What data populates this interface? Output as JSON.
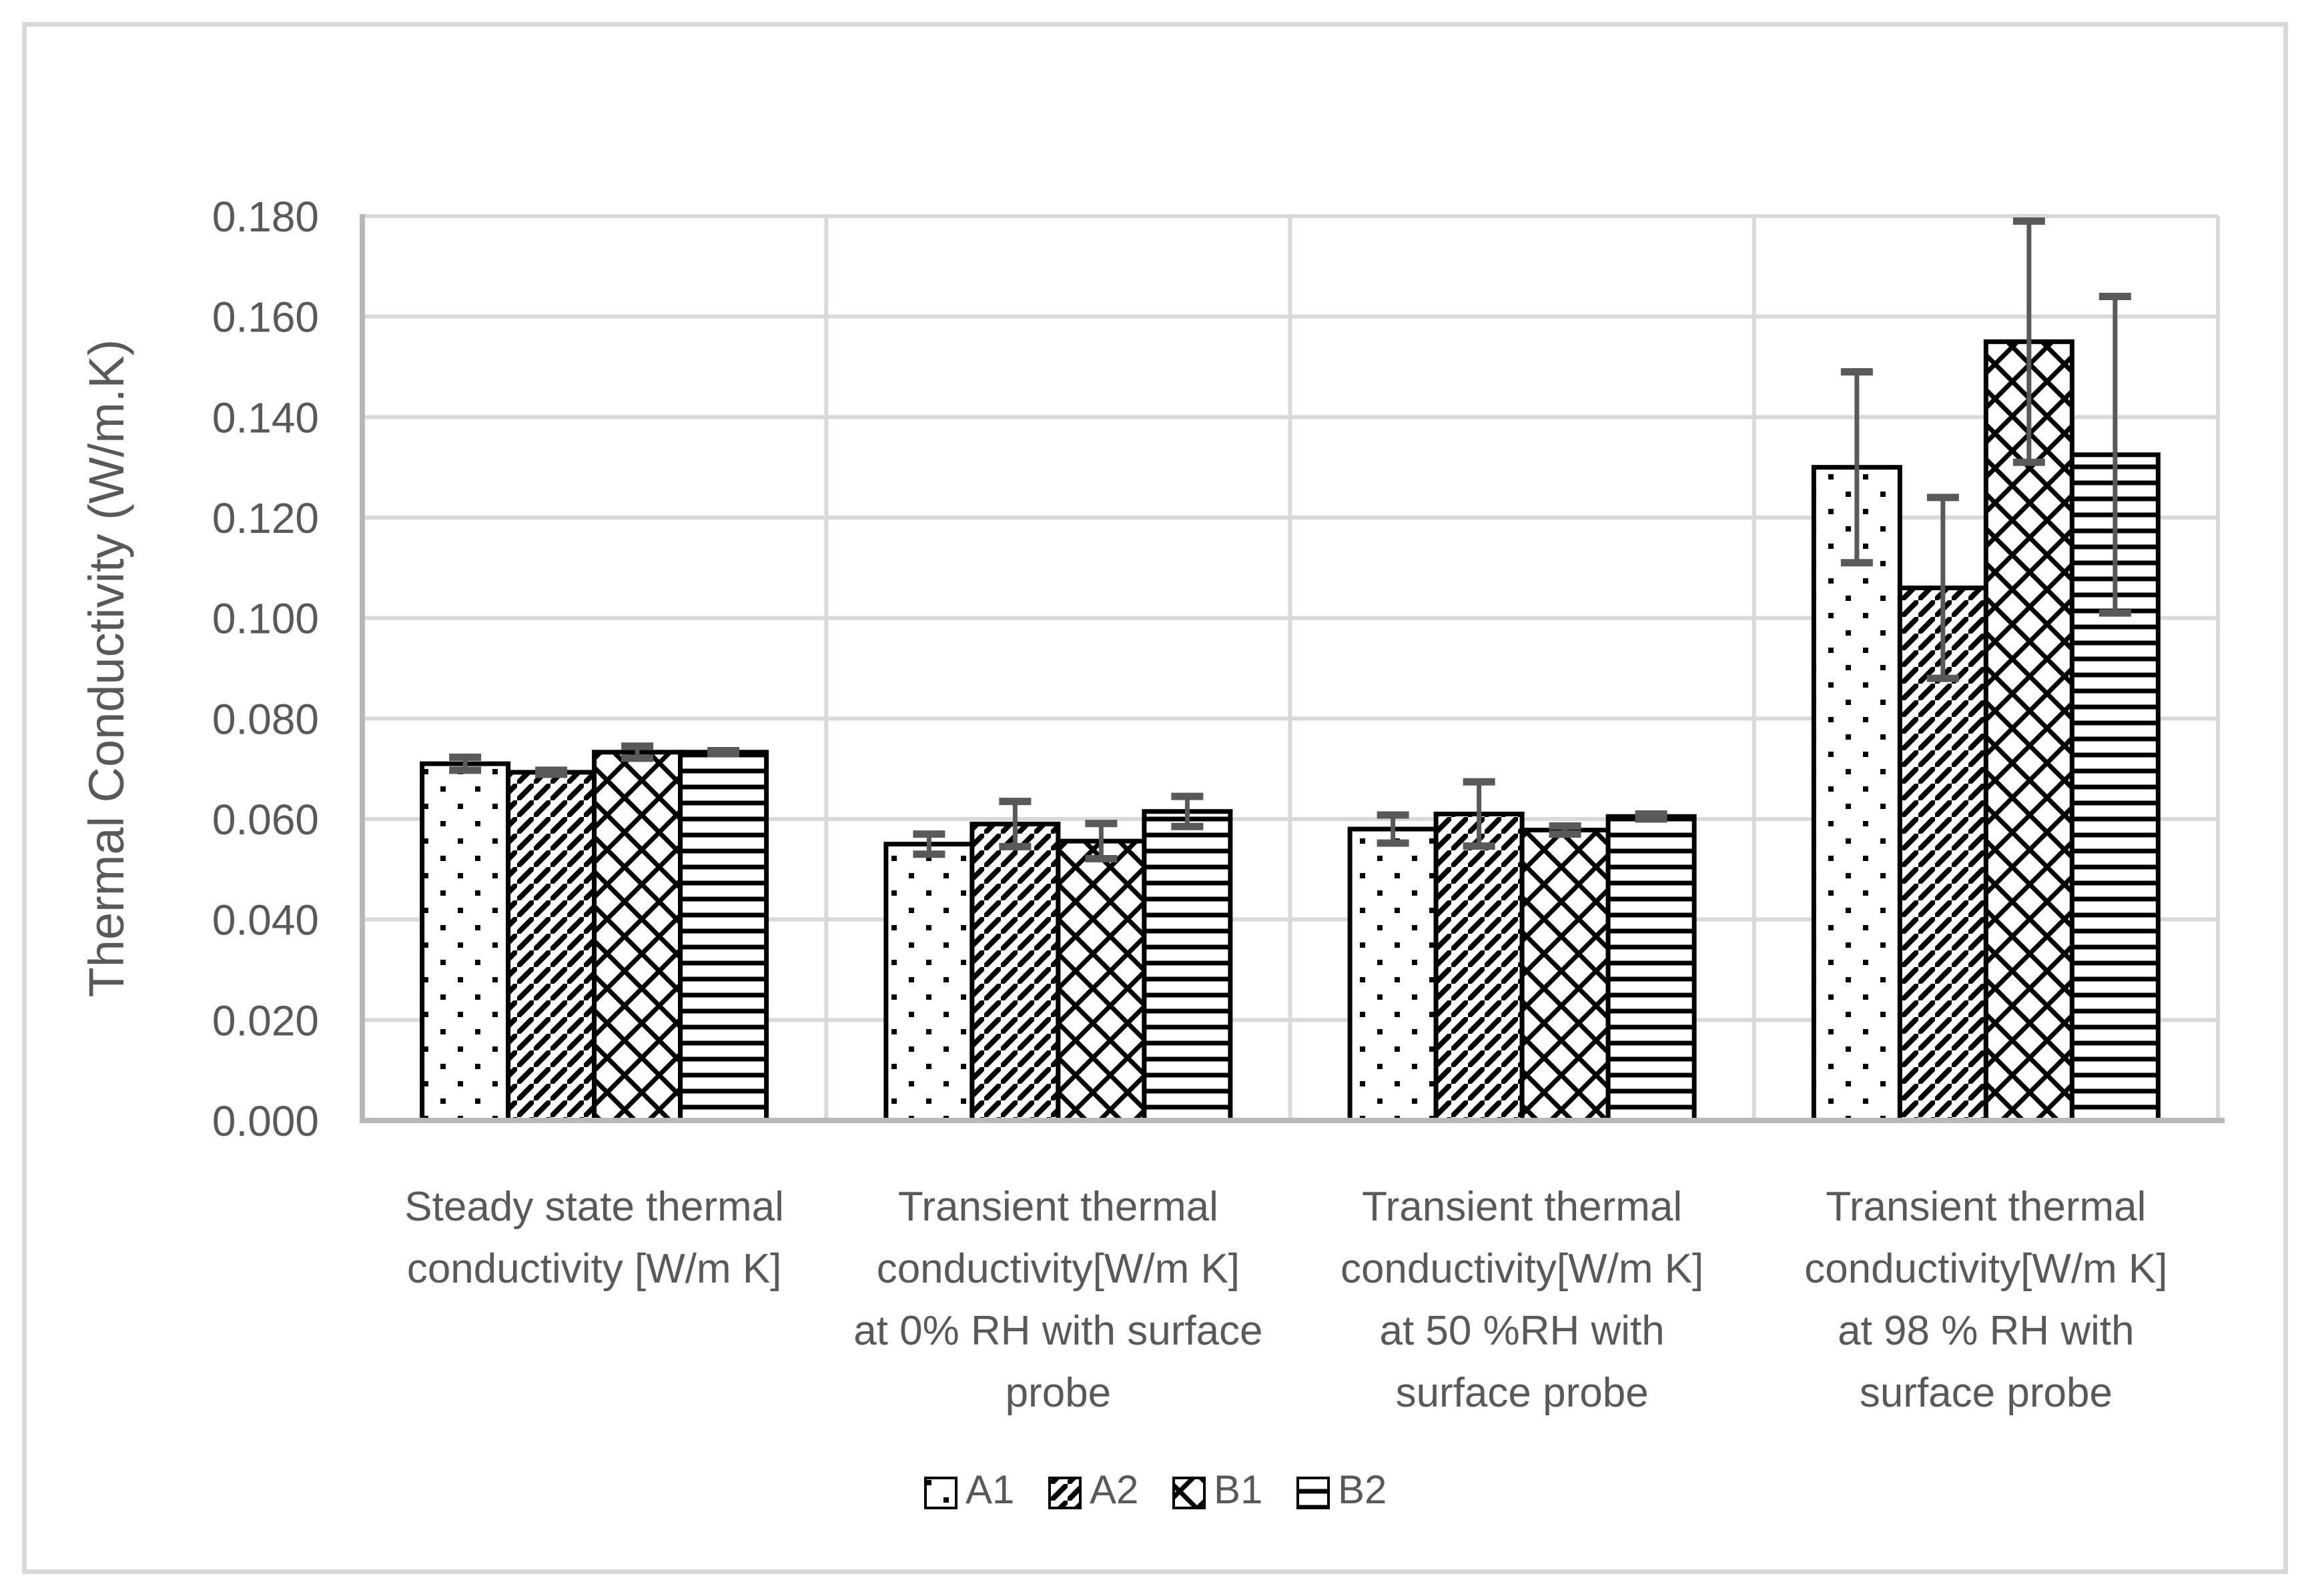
{
  "chart_data": {
    "type": "bar",
    "title": "",
    "ylabel": "Thermal Conductivity (W/m.K)",
    "xlabel": "",
    "ylim": [
      0,
      0.18
    ],
    "ytick_interval": 0.02,
    "yticks": [
      "0.000",
      "0.020",
      "0.040",
      "0.060",
      "0.080",
      "0.100",
      "0.120",
      "0.140",
      "0.160",
      "0.180"
    ],
    "grid": true,
    "legend_position": "bottom",
    "legend": [
      "A1",
      "A2",
      "B1",
      "B2"
    ],
    "categories": [
      "Steady state thermal conductivity [W/m K]",
      "Transient thermal conductivity[W/m K] at 0%  RH with surface probe",
      "Transient thermal conductivity[W/m K] at 50 %RH with surface probe",
      "Transient thermal conductivity[W/m K] at 98 % RH with surface probe"
    ],
    "category_lines": [
      [
        "Steady state thermal",
        "conductivity [W/m K]"
      ],
      [
        "Transient thermal",
        "conductivity[W/m K]",
        "at 0%  RH with surface",
        "probe"
      ],
      [
        "Transient thermal",
        "conductivity[W/m K]",
        "at 50 %RH with",
        "surface probe"
      ],
      [
        "Transient thermal",
        "conductivity[W/m K]",
        "at 98 % RH with",
        "surface probe"
      ]
    ],
    "series": [
      {
        "name": "A1",
        "pattern": "dots",
        "values": [
          0.071,
          0.055,
          0.058,
          0.13
        ],
        "errors": [
          0.0013,
          0.002,
          0.0028,
          0.019
        ]
      },
      {
        "name": "A2",
        "pattern": "diagonal-stripes",
        "values": [
          0.0693,
          0.059,
          0.061,
          0.106
        ],
        "errors": [
          0.0004,
          0.0045,
          0.0064,
          0.018
        ]
      },
      {
        "name": "B1",
        "pattern": "diamond-crosshatch",
        "values": [
          0.0733,
          0.0556,
          0.0578,
          0.155
        ],
        "errors": [
          0.0012,
          0.0035,
          0.0008,
          0.024
        ]
      },
      {
        "name": "B2",
        "pattern": "horizontal-lines",
        "values": [
          0.0733,
          0.0615,
          0.0605,
          0.1325
        ],
        "errors": [
          0.0003,
          0.003,
          0.0005,
          0.0315
        ]
      }
    ],
    "colors": {
      "background": "#ffffff",
      "bar_fill": "#ffffff",
      "bar_border": "#000000",
      "pattern_ink": "#000000",
      "error_bar": "#595959",
      "text": "#595959",
      "gridline": "#d9d9d9",
      "axis_line": "#b9b9b9",
      "figure_border": "#d9d9d9"
    }
  }
}
